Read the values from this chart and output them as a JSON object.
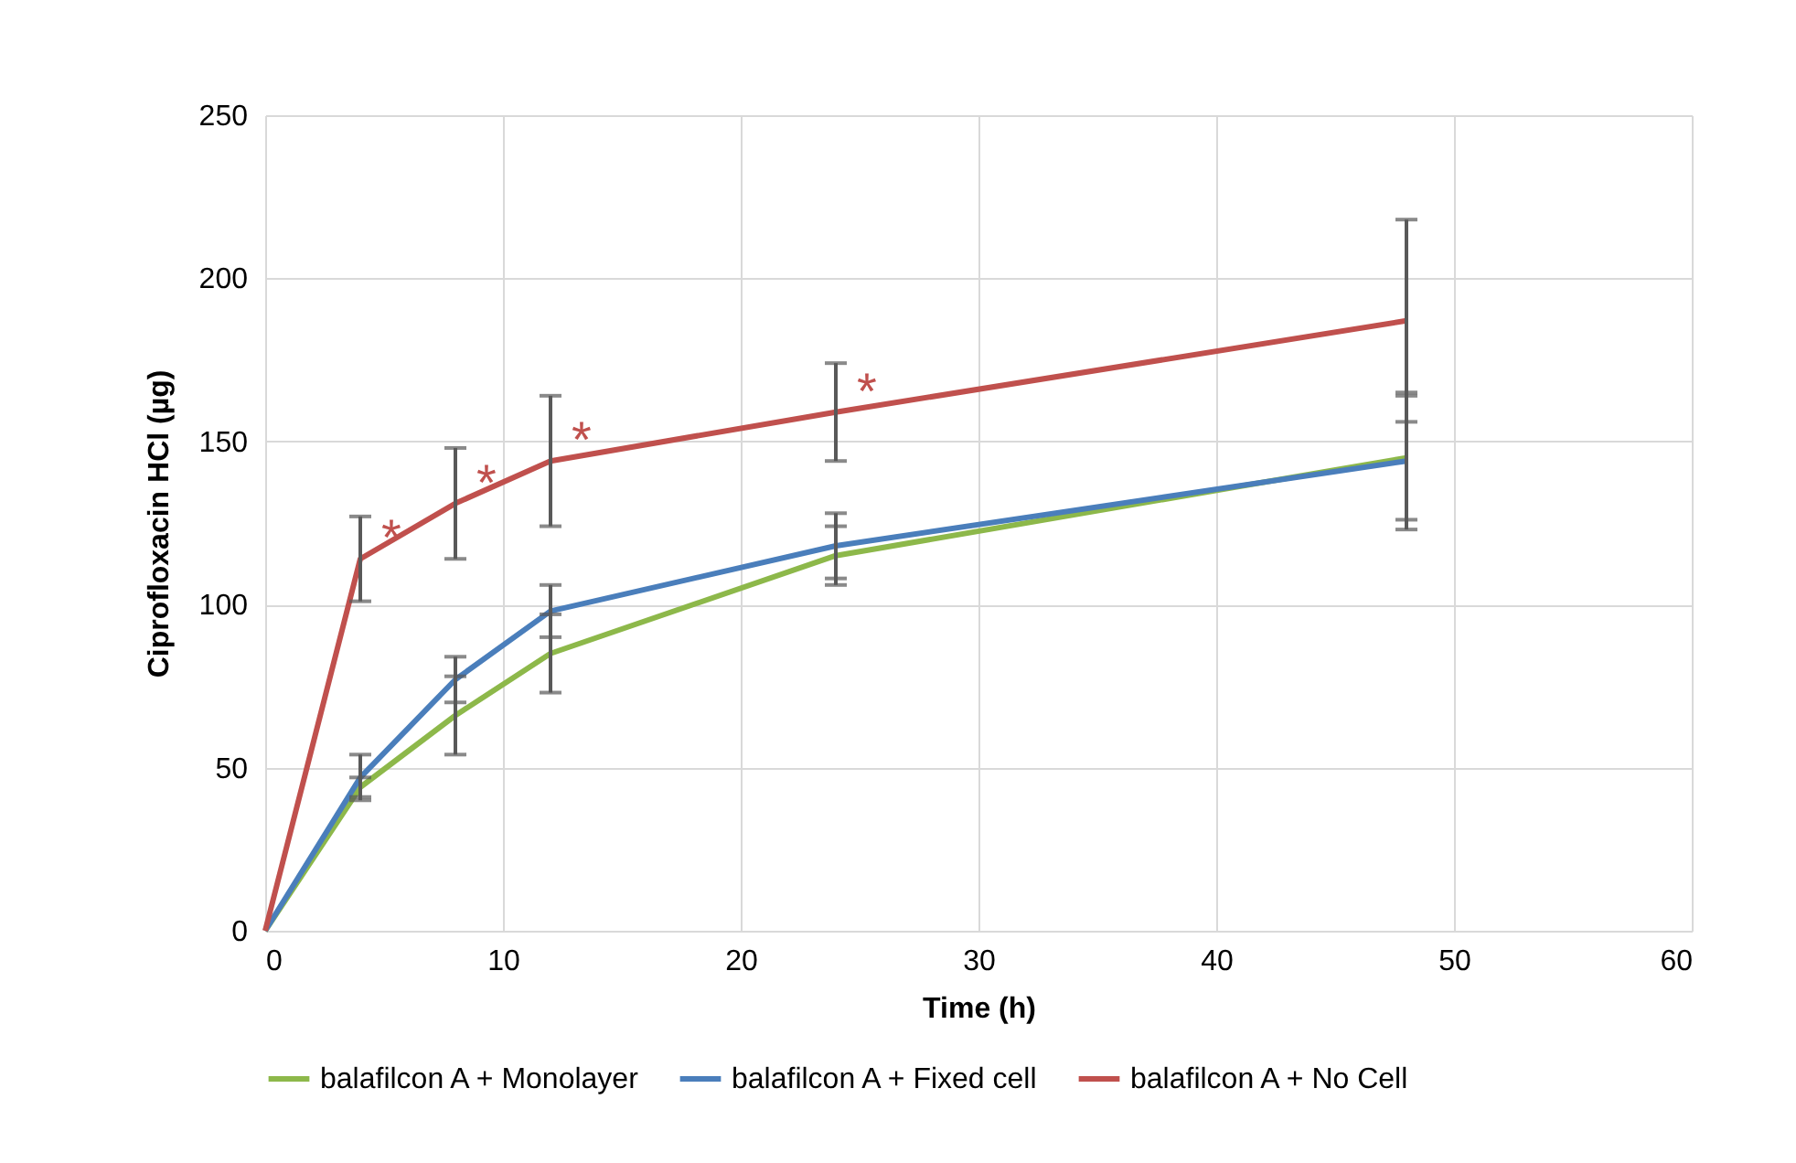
{
  "chart_data": {
    "type": "line",
    "xlabel": "Time (h)",
    "ylabel": "Ciprofloxacin HCl (µg)",
    "x": [
      0,
      4,
      8,
      12,
      24,
      48
    ],
    "series": [
      {
        "name": "balafilcon A + Monolayer",
        "color": "#8db84a",
        "values": [
          0,
          44,
          66,
          85,
          115,
          145
        ],
        "errors": [
          null,
          3,
          12,
          12,
          9,
          19
        ]
      },
      {
        "name": "balafilcon A + Fixed cell",
        "color": "#4a7ebb",
        "values": [
          0,
          47,
          77,
          98,
          118,
          144
        ],
        "errors": [
          null,
          7,
          7,
          8,
          10,
          21
        ]
      },
      {
        "name": "balafilcon A + No Cell",
        "color": "#c0504d",
        "values": [
          0,
          114,
          131,
          144,
          159,
          187
        ],
        "errors": [
          null,
          13,
          17,
          20,
          15,
          31
        ]
      }
    ],
    "annotations": [
      {
        "text": "*",
        "x": 4,
        "y": 114
      },
      {
        "text": "*",
        "x": 8,
        "y": 131
      },
      {
        "text": "*",
        "x": 12,
        "y": 144
      },
      {
        "text": "*",
        "x": 24,
        "y": 159
      }
    ],
    "xlim": [
      0,
      60
    ],
    "xticks": [
      0,
      10,
      20,
      30,
      40,
      50,
      60
    ],
    "ylim": [
      0,
      250
    ],
    "yticks": [
      0,
      50,
      100,
      150,
      200,
      250
    ],
    "grid": true,
    "legend": "bottom",
    "marker": "none",
    "line_style": "solid"
  }
}
